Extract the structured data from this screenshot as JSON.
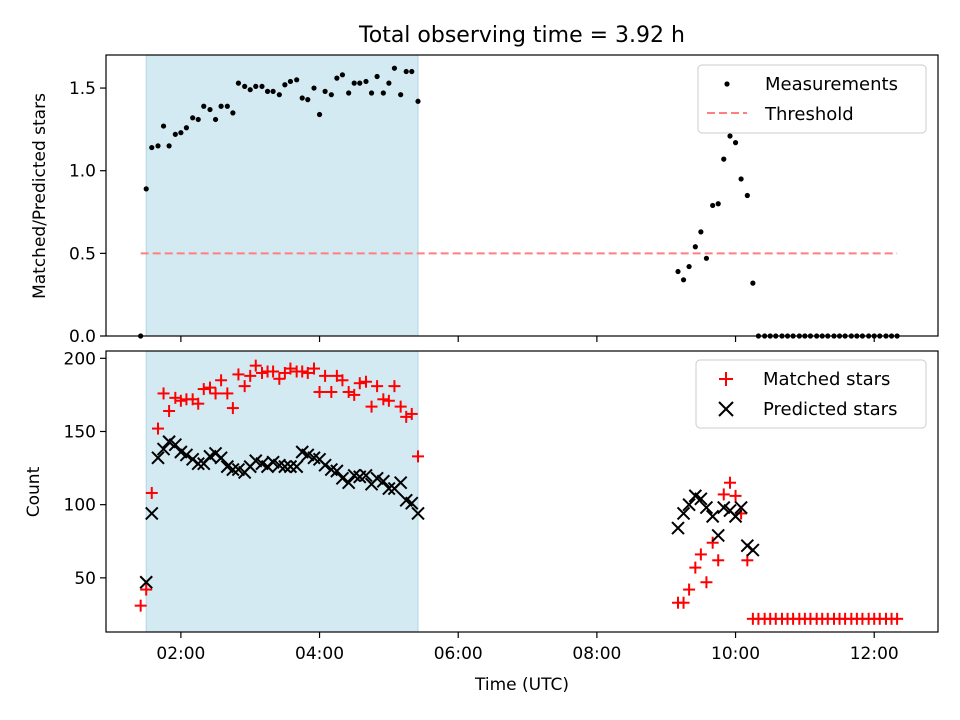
{
  "chart_data": [
    {
      "type": "scatter",
      "title": "Total observing time = 3.92 h",
      "ylabel": "Matched/Predicted stars",
      "xlabel": "",
      "xlim": [
        0.92,
        12.92
      ],
      "ylim": [
        0,
        1.7
      ],
      "yticks": [
        0.0,
        0.5,
        1.0,
        1.5
      ],
      "ytick_labels": [
        "0.0",
        "0.5",
        "1.0",
        "1.5"
      ],
      "shaded_interval": [
        1.5,
        5.42
      ],
      "shade_color": "#add8e6",
      "legend_position": "upper right",
      "threshold": {
        "name": "Threshold",
        "value": 0.5,
        "x_range": [
          1.42,
          12.33
        ],
        "color": "#ff7f7f",
        "style": "dashed"
      },
      "series": [
        {
          "name": "Measurements",
          "color": "#000000",
          "marker": "dot",
          "points": [
            [
              1.42,
              0.0
            ],
            [
              1.5,
              0.89
            ],
            [
              1.58,
              1.14
            ],
            [
              1.67,
              1.15
            ],
            [
              1.75,
              1.27
            ],
            [
              1.83,
              1.15
            ],
            [
              1.92,
              1.22
            ],
            [
              2.0,
              1.23
            ],
            [
              2.08,
              1.26
            ],
            [
              2.17,
              1.32
            ],
            [
              2.25,
              1.31
            ],
            [
              2.33,
              1.39
            ],
            [
              2.42,
              1.37
            ],
            [
              2.5,
              1.31
            ],
            [
              2.58,
              1.39
            ],
            [
              2.67,
              1.39
            ],
            [
              2.75,
              1.35
            ],
            [
              2.83,
              1.53
            ],
            [
              2.92,
              1.51
            ],
            [
              3.0,
              1.49
            ],
            [
              3.08,
              1.51
            ],
            [
              3.17,
              1.51
            ],
            [
              3.25,
              1.48
            ],
            [
              3.33,
              1.48
            ],
            [
              3.42,
              1.46
            ],
            [
              3.5,
              1.52
            ],
            [
              3.58,
              1.54
            ],
            [
              3.67,
              1.55
            ],
            [
              3.75,
              1.44
            ],
            [
              3.83,
              1.43
            ],
            [
              3.92,
              1.5
            ],
            [
              4.0,
              1.34
            ],
            [
              4.08,
              1.48
            ],
            [
              4.17,
              1.46
            ],
            [
              4.25,
              1.56
            ],
            [
              4.33,
              1.58
            ],
            [
              4.42,
              1.47
            ],
            [
              4.5,
              1.53
            ],
            [
              4.58,
              1.53
            ],
            [
              4.67,
              1.54
            ],
            [
              4.75,
              1.47
            ],
            [
              4.83,
              1.57
            ],
            [
              4.92,
              1.47
            ],
            [
              5.0,
              1.53
            ],
            [
              5.08,
              1.62
            ],
            [
              5.17,
              1.46
            ],
            [
              5.25,
              1.6
            ],
            [
              5.33,
              1.6
            ],
            [
              5.42,
              1.42
            ],
            [
              9.17,
              0.39
            ],
            [
              9.25,
              0.34
            ],
            [
              9.33,
              0.42
            ],
            [
              9.42,
              0.54
            ],
            [
              9.5,
              0.63
            ],
            [
              9.58,
              0.47
            ],
            [
              9.67,
              0.79
            ],
            [
              9.75,
              0.8
            ],
            [
              9.83,
              1.07
            ],
            [
              9.92,
              1.21
            ],
            [
              10.0,
              1.17
            ],
            [
              10.08,
              0.95
            ],
            [
              10.17,
              0.85
            ],
            [
              10.25,
              0.32
            ],
            [
              10.33,
              0.0
            ],
            [
              10.42,
              0.0
            ],
            [
              10.5,
              0.0
            ],
            [
              10.58,
              0.0
            ],
            [
              10.67,
              0.0
            ],
            [
              10.75,
              0.0
            ],
            [
              10.83,
              0.0
            ],
            [
              10.92,
              0.0
            ],
            [
              11.0,
              0.0
            ],
            [
              11.08,
              0.0
            ],
            [
              11.17,
              0.0
            ],
            [
              11.25,
              0.0
            ],
            [
              11.33,
              0.0
            ],
            [
              11.42,
              0.0
            ],
            [
              11.5,
              0.0
            ],
            [
              11.58,
              0.0
            ],
            [
              11.67,
              0.0
            ],
            [
              11.75,
              0.0
            ],
            [
              11.83,
              0.0
            ],
            [
              11.92,
              0.0
            ],
            [
              12.0,
              0.0
            ],
            [
              12.08,
              0.0
            ],
            [
              12.17,
              0.0
            ],
            [
              12.25,
              0.0
            ],
            [
              12.33,
              0.0
            ]
          ]
        }
      ]
    },
    {
      "type": "scatter",
      "ylabel": "Count",
      "xlabel": "Time (UTC)",
      "xlim": [
        0.92,
        12.92
      ],
      "ylim": [
        13,
        205
      ],
      "yticks": [
        50,
        100,
        150,
        200
      ],
      "ytick_labels": [
        "50",
        "100",
        "150",
        "200"
      ],
      "xticks": [
        2,
        4,
        6,
        8,
        10,
        12
      ],
      "xtick_labels": [
        "02:00",
        "04:00",
        "06:00",
        "08:00",
        "10:00",
        "12:00"
      ],
      "shaded_interval": [
        1.5,
        5.42
      ],
      "shade_color": "#add8e6",
      "legend_position": "upper right",
      "series": [
        {
          "name": "Matched stars",
          "color": "#ff0000",
          "marker": "plus",
          "points": [
            [
              1.42,
              31
            ],
            [
              1.5,
              42
            ],
            [
              1.58,
              108
            ],
            [
              1.67,
              152
            ],
            [
              1.75,
              176
            ],
            [
              1.83,
              164
            ],
            [
              1.92,
              173
            ],
            [
              2.0,
              171
            ],
            [
              2.08,
              172
            ],
            [
              2.17,
              172
            ],
            [
              2.25,
              169
            ],
            [
              2.33,
              179
            ],
            [
              2.42,
              180
            ],
            [
              2.5,
              176
            ],
            [
              2.58,
              185
            ],
            [
              2.67,
              176
            ],
            [
              2.75,
              166
            ],
            [
              2.83,
              189
            ],
            [
              2.92,
              181
            ],
            [
              3.0,
              188
            ],
            [
              3.08,
              195
            ],
            [
              3.17,
              190
            ],
            [
              3.25,
              191
            ],
            [
              3.33,
              191
            ],
            [
              3.42,
              186
            ],
            [
              3.5,
              190
            ],
            [
              3.58,
              193
            ],
            [
              3.67,
              191
            ],
            [
              3.75,
              191
            ],
            [
              3.83,
              190
            ],
            [
              3.92,
              193
            ],
            [
              4.0,
              177
            ],
            [
              4.08,
              188
            ],
            [
              4.17,
              177
            ],
            [
              4.25,
              188
            ],
            [
              4.33,
              185
            ],
            [
              4.42,
              177
            ],
            [
              4.5,
              175
            ],
            [
              4.58,
              183
            ],
            [
              4.67,
              184
            ],
            [
              4.75,
              167
            ],
            [
              4.83,
              181
            ],
            [
              4.92,
              172
            ],
            [
              5.0,
              171
            ],
            [
              5.08,
              181
            ],
            [
              5.17,
              167
            ],
            [
              5.25,
              160
            ],
            [
              5.33,
              162
            ],
            [
              5.42,
              133
            ],
            [
              9.17,
              33
            ],
            [
              9.25,
              33
            ],
            [
              9.33,
              42
            ],
            [
              9.42,
              57
            ],
            [
              9.5,
              66
            ],
            [
              9.58,
              47
            ],
            [
              9.67,
              74
            ],
            [
              9.75,
              62
            ],
            [
              9.83,
              107
            ],
            [
              9.92,
              115
            ],
            [
              10.0,
              106
            ],
            [
              10.08,
              94
            ],
            [
              10.17,
              62
            ],
            [
              10.25,
              22
            ],
            [
              10.33,
              22
            ],
            [
              10.42,
              22
            ],
            [
              10.5,
              22
            ],
            [
              10.58,
              22
            ],
            [
              10.67,
              22
            ],
            [
              10.75,
              22
            ],
            [
              10.83,
              22
            ],
            [
              10.92,
              22
            ],
            [
              11.0,
              22
            ],
            [
              11.08,
              22
            ],
            [
              11.17,
              22
            ],
            [
              11.25,
              22
            ],
            [
              11.33,
              22
            ],
            [
              11.42,
              22
            ],
            [
              11.5,
              22
            ],
            [
              11.58,
              22
            ],
            [
              11.67,
              22
            ],
            [
              11.75,
              22
            ],
            [
              11.83,
              22
            ],
            [
              11.92,
              22
            ],
            [
              12.0,
              22
            ],
            [
              12.08,
              22
            ],
            [
              12.17,
              22
            ],
            [
              12.25,
              22
            ],
            [
              12.33,
              22
            ]
          ]
        },
        {
          "name": "Predicted stars",
          "color": "#000000",
          "marker": "x",
          "points": [
            [
              1.5,
              47
            ],
            [
              1.58,
              94
            ],
            [
              1.67,
              132
            ],
            [
              1.75,
              138
            ],
            [
              1.83,
              143
            ],
            [
              1.92,
              141
            ],
            [
              2.0,
              136
            ],
            [
              2.08,
              134
            ],
            [
              2.17,
              131
            ],
            [
              2.25,
              128
            ],
            [
              2.33,
              128
            ],
            [
              2.42,
              133
            ],
            [
              2.5,
              135
            ],
            [
              2.58,
              132
            ],
            [
              2.67,
              126
            ],
            [
              2.75,
              124
            ],
            [
              2.83,
              124
            ],
            [
              2.92,
              122
            ],
            [
              3.0,
              126
            ],
            [
              3.08,
              130
            ],
            [
              3.17,
              128
            ],
            [
              3.25,
              126
            ],
            [
              3.33,
              129
            ],
            [
              3.42,
              127
            ],
            [
              3.5,
              126
            ],
            [
              3.58,
              126
            ],
            [
              3.67,
              126
            ],
            [
              3.75,
              136
            ],
            [
              3.83,
              134
            ],
            [
              3.92,
              132
            ],
            [
              4.0,
              131
            ],
            [
              4.08,
              127
            ],
            [
              4.17,
              124
            ],
            [
              4.25,
              123
            ],
            [
              4.33,
              118
            ],
            [
              4.42,
              115
            ],
            [
              4.5,
              120
            ],
            [
              4.58,
              119
            ],
            [
              4.67,
              120
            ],
            [
              4.75,
              114
            ],
            [
              4.83,
              118
            ],
            [
              4.92,
              116
            ],
            [
              5.0,
              111
            ],
            [
              5.08,
              111
            ],
            [
              5.17,
              115
            ],
            [
              5.25,
              103
            ],
            [
              5.33,
              101
            ],
            [
              5.42,
              94
            ],
            [
              9.17,
              84
            ],
            [
              9.25,
              94
            ],
            [
              9.33,
              100
            ],
            [
              9.42,
              106
            ],
            [
              9.5,
              104
            ],
            [
              9.58,
              98
            ],
            [
              9.67,
              92
            ],
            [
              9.75,
              79
            ],
            [
              9.83,
              98
            ],
            [
              9.92,
              96
            ],
            [
              10.0,
              92
            ],
            [
              10.08,
              98
            ],
            [
              10.17,
              72
            ],
            [
              10.25,
              69
            ]
          ]
        }
      ]
    }
  ]
}
